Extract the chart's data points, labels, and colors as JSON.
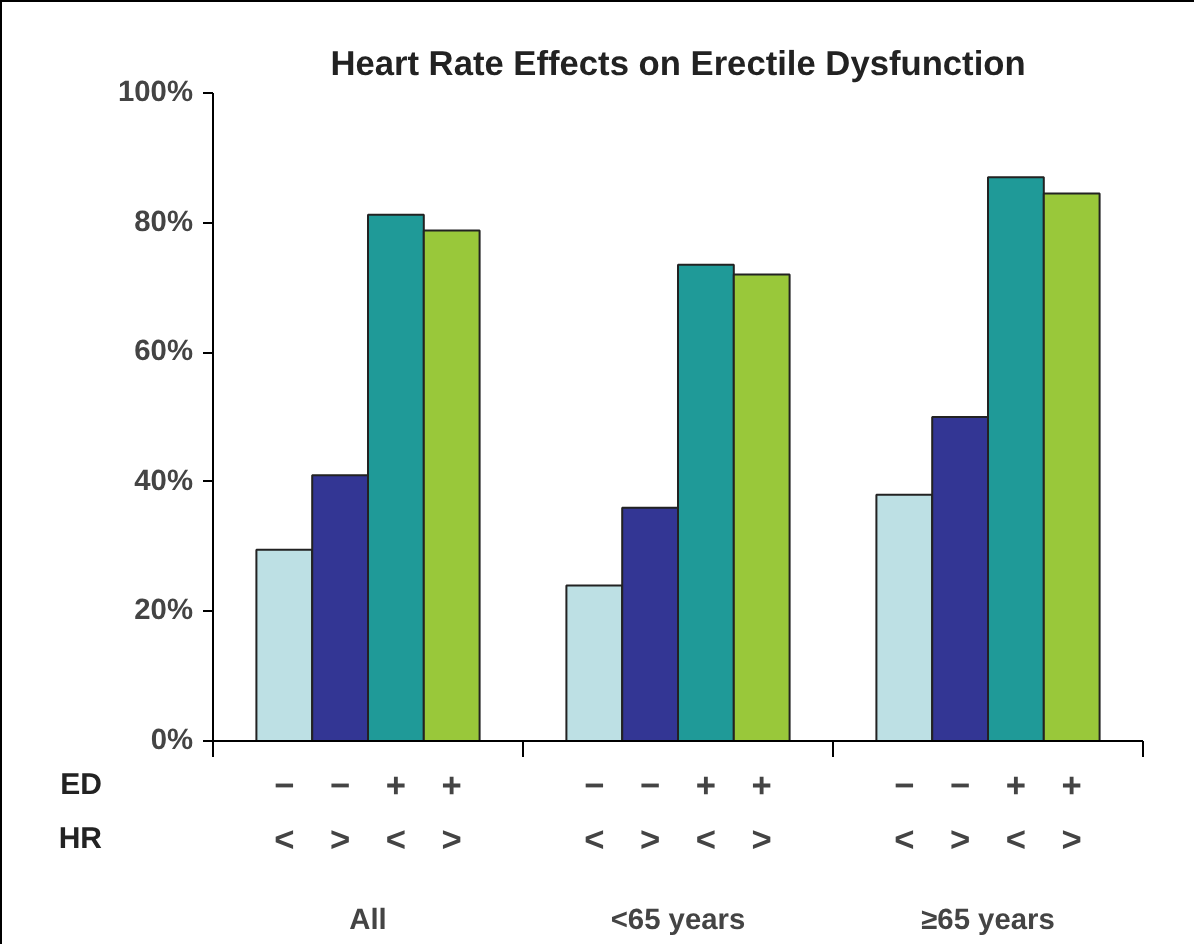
{
  "chart_data": {
    "type": "bar",
    "title": "Heart Rate Effects on Erectile Dysfunction",
    "categories": [
      "All",
      "<65 years",
      "≥65 years"
    ],
    "series": [
      {
        "color": "#bde0e4",
        "values": [
          29.5,
          24,
          38
        ]
      },
      {
        "color": "#333694",
        "values": [
          41,
          36,
          50
        ]
      },
      {
        "color": "#1f9a98",
        "values": [
          81.2,
          73.5,
          87
        ]
      },
      {
        "color": "#99c83a",
        "values": [
          78.8,
          72,
          84.5
        ]
      }
    ],
    "annotations": [
      "ED",
      "HR",
      "−",
      "−",
      "−",
      "−",
      "−",
      "−",
      "+",
      "+",
      "+",
      "+",
      "+",
      "+",
      "<",
      "<",
      "<",
      ">",
      ">",
      ">",
      "<",
      "<",
      "<",
      ">",
      ">",
      ">"
    ],
    "ylim": [
      0,
      100
    ],
    "yticks": [
      {
        "value": 0,
        "label": "0%"
      },
      {
        "value": 20,
        "label": "20%"
      },
      {
        "value": 40,
        "label": "40%"
      },
      {
        "value": 60,
        "label": "60%"
      },
      {
        "value": 80,
        "label": "80%"
      },
      {
        "value": 100,
        "label": "100%"
      }
    ],
    "grid": false
  }
}
